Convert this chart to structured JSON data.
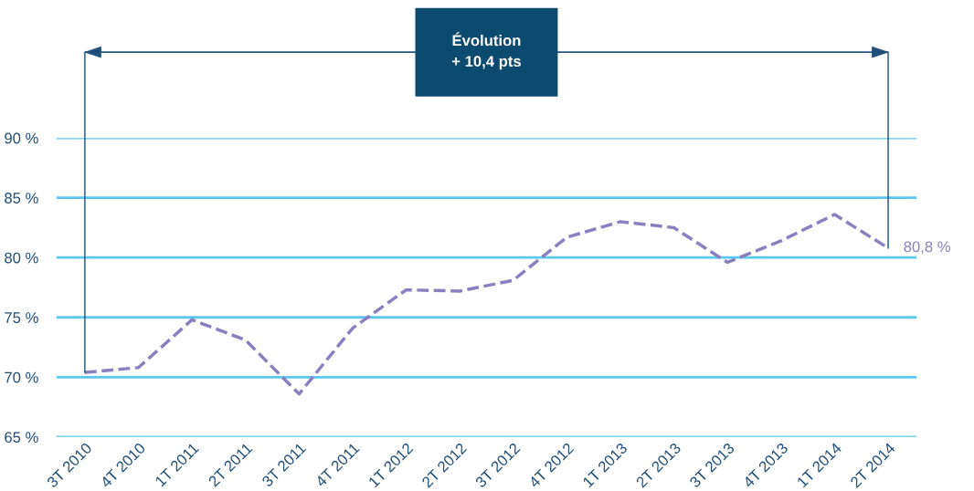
{
  "chart_data": {
    "type": "line",
    "categories": [
      "3T 2010",
      "4T 2010",
      "1T 2011",
      "2T 2011",
      "3T 2011",
      "4T 2011",
      "1T 2012",
      "2T 2012",
      "3T 2012",
      "4T 2012",
      "1T 2013",
      "2T 2013",
      "3T 2013",
      "4T 2013",
      "1T 2014",
      "2T 2014"
    ],
    "series": [
      {
        "color": "#8c7fc0",
        "values": [
          70.4,
          70.8,
          74.8,
          73.1,
          68.6,
          74.1,
          77.3,
          77.2,
          78.1,
          81.7,
          83.0,
          82.5,
          79.6,
          81.4,
          83.6,
          80.8
        ],
        "value_labels": [
          null,
          null,
          null,
          null,
          null,
          null,
          null,
          null,
          null,
          null,
          null,
          null,
          null,
          null,
          null,
          "80,8 %"
        ]
      }
    ],
    "ylim": [
      65,
      90
    ],
    "yticks": [
      {
        "value": 65,
        "label": "65 %"
      },
      {
        "value": 70,
        "label": "70 %"
      },
      {
        "value": 75,
        "label": "75 %"
      },
      {
        "value": 80,
        "label": "80 %"
      },
      {
        "value": 85,
        "label": "85 %"
      },
      {
        "value": 90,
        "label": "90 %"
      }
    ],
    "grid": "y",
    "line_style": "dashed",
    "marker": "none",
    "legend": false,
    "annotations": [
      "Évolution\n+ 10,4 pts"
    ]
  }
}
